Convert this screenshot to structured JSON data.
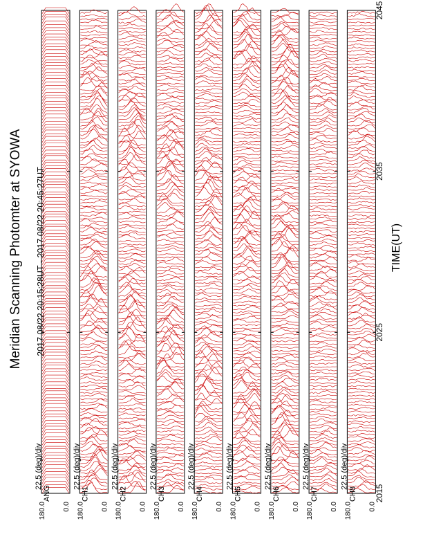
{
  "title": "Meridian Scanning Photomter at SYOWA",
  "time_range": "2017 08/22 20:15:28UT - 2017 08/22 20:45:27UT",
  "chart_data": {
    "type": "line",
    "orientation": "rotated-90-ccw",
    "xlabel": "TIME(UT)",
    "x_ticks": [
      "2015",
      "2025",
      "2035",
      "2045"
    ],
    "xlim": [
      "20:15",
      "20:45"
    ],
    "line_color": "#cc0000",
    "grid": false,
    "panels": [
      {
        "channel_label": "ANG",
        "scale_label": "22.5 (deg)/div",
        "y_ticks": [
          "180.0",
          "0.0"
        ],
        "ylim": [
          0,
          180
        ]
      },
      {
        "channel_label": "CH1",
        "scale_label": "22.5 (deg)/div",
        "y_ticks": [
          "180.0",
          "0.0"
        ],
        "ylim": [
          0,
          180
        ]
      },
      {
        "channel_label": "CH2",
        "scale_label": "22.5 (deg)/div",
        "y_ticks": [
          "180.0",
          "0.0"
        ],
        "ylim": [
          0,
          180
        ]
      },
      {
        "channel_label": "CH3",
        "scale_label": "22.5 (deg)/div",
        "y_ticks": [
          "180.0",
          "0.0"
        ],
        "ylim": [
          0,
          180
        ]
      },
      {
        "channel_label": "CH4",
        "scale_label": "22.5 (deg)/div",
        "y_ticks": [
          "180.0",
          "0.0"
        ],
        "ylim": [
          0,
          180
        ]
      },
      {
        "channel_label": "CH5",
        "scale_label": "22.5 (deg)/div",
        "y_ticks": [
          "180.0",
          "0.0"
        ],
        "ylim": [
          0,
          180
        ]
      },
      {
        "channel_label": "CH6",
        "scale_label": "22.5 (deg)/div",
        "y_ticks": [
          "180.0",
          "0.0"
        ],
        "ylim": [
          0,
          180
        ]
      },
      {
        "channel_label": "CH7",
        "scale_label": "22.5 (deg)/div",
        "y_ticks": [
          "180.0",
          "0.0"
        ],
        "ylim": [
          0,
          180
        ]
      },
      {
        "channel_label": "CH8",
        "scale_label": "22.5 (deg)/div",
        "y_ticks": [
          "180.0",
          "0.0"
        ],
        "ylim": [
          0,
          180
        ]
      }
    ]
  }
}
